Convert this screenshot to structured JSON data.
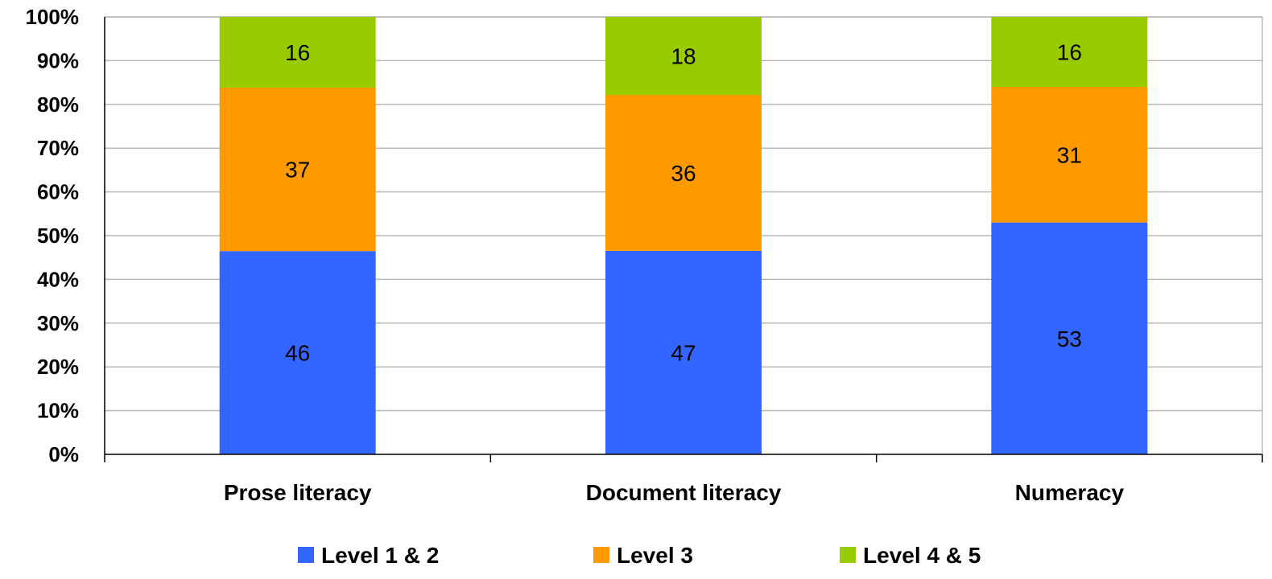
{
  "chart_data": {
    "type": "bar",
    "stacked": true,
    "normalized": true,
    "categories": [
      "Prose literacy",
      "Document literacy",
      "Numeracy"
    ],
    "series": [
      {
        "name": "Level 1 & 2",
        "values": [
          46,
          47,
          53
        ],
        "color": "#3366FF"
      },
      {
        "name": "Level 3",
        "values": [
          37,
          36,
          31
        ],
        "color": "#FF9900"
      },
      {
        "name": "Level 4 & 5",
        "values": [
          16,
          18,
          16
        ],
        "color": "#99CC00"
      }
    ],
    "yticks": [
      "0%",
      "10%",
      "20%",
      "30%",
      "40%",
      "50%",
      "60%",
      "70%",
      "80%",
      "90%",
      "100%"
    ],
    "ylim": [
      0,
      100
    ],
    "grid": true,
    "legend_position": "bottom"
  }
}
